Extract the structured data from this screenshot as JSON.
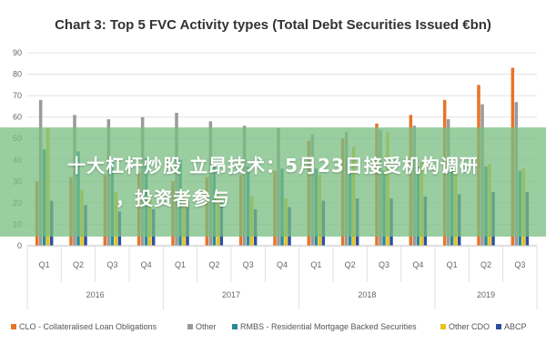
{
  "chart_data": {
    "type": "bar",
    "title": "Chart 3: Top 5 FVC Activity types (Total Debt Securities Issued €bn)",
    "xlabel": "",
    "ylabel": "",
    "ylim": [
      0,
      90
    ],
    "yticks": [
      0,
      10,
      20,
      30,
      40,
      50,
      60,
      70,
      80,
      90
    ],
    "grid": true,
    "legend_position": "bottom",
    "categories": [
      "Q1",
      "Q2",
      "Q3",
      "Q4",
      "Q1",
      "Q2",
      "Q3",
      "Q4",
      "Q1",
      "Q2",
      "Q3",
      "Q4",
      "Q1",
      "Q2",
      "Q3"
    ],
    "year_groups": [
      {
        "label": "2016",
        "count": 4
      },
      {
        "label": "2017",
        "count": 4
      },
      {
        "label": "2018",
        "count": 4
      },
      {
        "label": "2019",
        "count": 3
      }
    ],
    "series": [
      {
        "name": "CLO - Collateralised Loan Obligations",
        "color": "#e8732a",
        "values": [
          30,
          32,
          33,
          34,
          30,
          32,
          33,
          35,
          49,
          50,
          57,
          61,
          68,
          75,
          83
        ]
      },
      {
        "name": "Other",
        "color": "#9a9a9a",
        "values": [
          68,
          61,
          59,
          60,
          62,
          58,
          56,
          55,
          52,
          53,
          54,
          56,
          59,
          66,
          67
        ]
      },
      {
        "name": "RMBS - Residential Mortgage Backed Securities",
        "color": "#2b8a96",
        "values": [
          45,
          44,
          40,
          41,
          40,
          38,
          37,
          36,
          36,
          35,
          35,
          37,
          38,
          37,
          35
        ]
      },
      {
        "name": "Other CDO",
        "color": "#e8c21a",
        "values": [
          55,
          26,
          25,
          24,
          25,
          24,
          23,
          22,
          33,
          46,
          53,
          39,
          36,
          38,
          36
        ]
      },
      {
        "name": "ABCP",
        "color": "#2e4fa0",
        "values": [
          21,
          19,
          16,
          17,
          21,
          21,
          17,
          18,
          21,
          22,
          22,
          23,
          24,
          25,
          25
        ]
      }
    ]
  },
  "overlay": {
    "line1": "十大杠杆炒股 立昂技术：5月23日接受机构调研",
    "line2": "，投资者参与"
  }
}
